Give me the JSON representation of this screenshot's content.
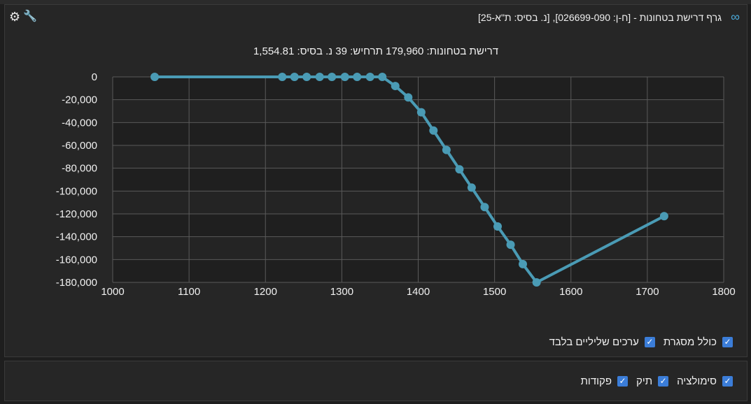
{
  "window": {
    "title": "גרף דרישת בטחונות - [ח-ן: 026699-090], [נ. בסיס: ת\"א-25]",
    "subtitle": "דרישת בטחונות: 179,960 תרחיש: 39 נ. בסיס: 1,554.81"
  },
  "icons": {
    "title_icon": "infinity-icon",
    "settings": "gear-icon",
    "tools": "wrench-icon"
  },
  "colors": {
    "line": "#4a9bb5",
    "plot_bg": "#1f1f1f",
    "grid": "#5a5a5a",
    "checkbox": "#3b7dd8",
    "accent": "#4aa8d8"
  },
  "options": {
    "include_frame": "כולל מסגרת",
    "negative_only": "ערכים שליליים בלבד"
  },
  "filters": {
    "simulation": "סימולציה",
    "portfolio": "תיק",
    "orders": "פקודות"
  },
  "chart_data": {
    "type": "line",
    "xlim": [
      1000,
      1800
    ],
    "ylim": [
      -180000,
      0
    ],
    "x_ticks": [
      1000,
      1100,
      1200,
      1300,
      1400,
      1500,
      1600,
      1700,
      1800
    ],
    "x_tick_labels": [
      "1000",
      "1100",
      "1200",
      "1300",
      "1400",
      "1500",
      "1600",
      "1700",
      "1800"
    ],
    "y_ticks": [
      0,
      -20000,
      -40000,
      -60000,
      -80000,
      -100000,
      -120000,
      -140000,
      -160000,
      -180000
    ],
    "y_tick_labels": [
      "0",
      "-20,000",
      "-40,000",
      "-60,000",
      "-80,000",
      "-100,000",
      "-120,000",
      "-140,000",
      "-160,000",
      "-180,000"
    ],
    "grid": true,
    "series": [
      {
        "points": [
          [
            1055,
            0
          ],
          [
            1222,
            0
          ],
          [
            1238,
            0
          ],
          [
            1254,
            0
          ],
          [
            1271,
            0
          ],
          [
            1287,
            0
          ],
          [
            1304,
            0
          ],
          [
            1320,
            0
          ],
          [
            1337,
            0
          ],
          [
            1353,
            0
          ],
          [
            1370,
            -8000
          ],
          [
            1387,
            -18000
          ],
          [
            1404,
            -31000
          ],
          [
            1420,
            -47000
          ],
          [
            1437,
            -64000
          ],
          [
            1454,
            -81000
          ],
          [
            1470,
            -97000
          ],
          [
            1487,
            -114000
          ],
          [
            1504,
            -131000
          ],
          [
            1521,
            -147000
          ],
          [
            1537,
            -164000
          ],
          [
            1555,
            -180000
          ],
          [
            1722,
            -122000
          ]
        ]
      }
    ]
  }
}
